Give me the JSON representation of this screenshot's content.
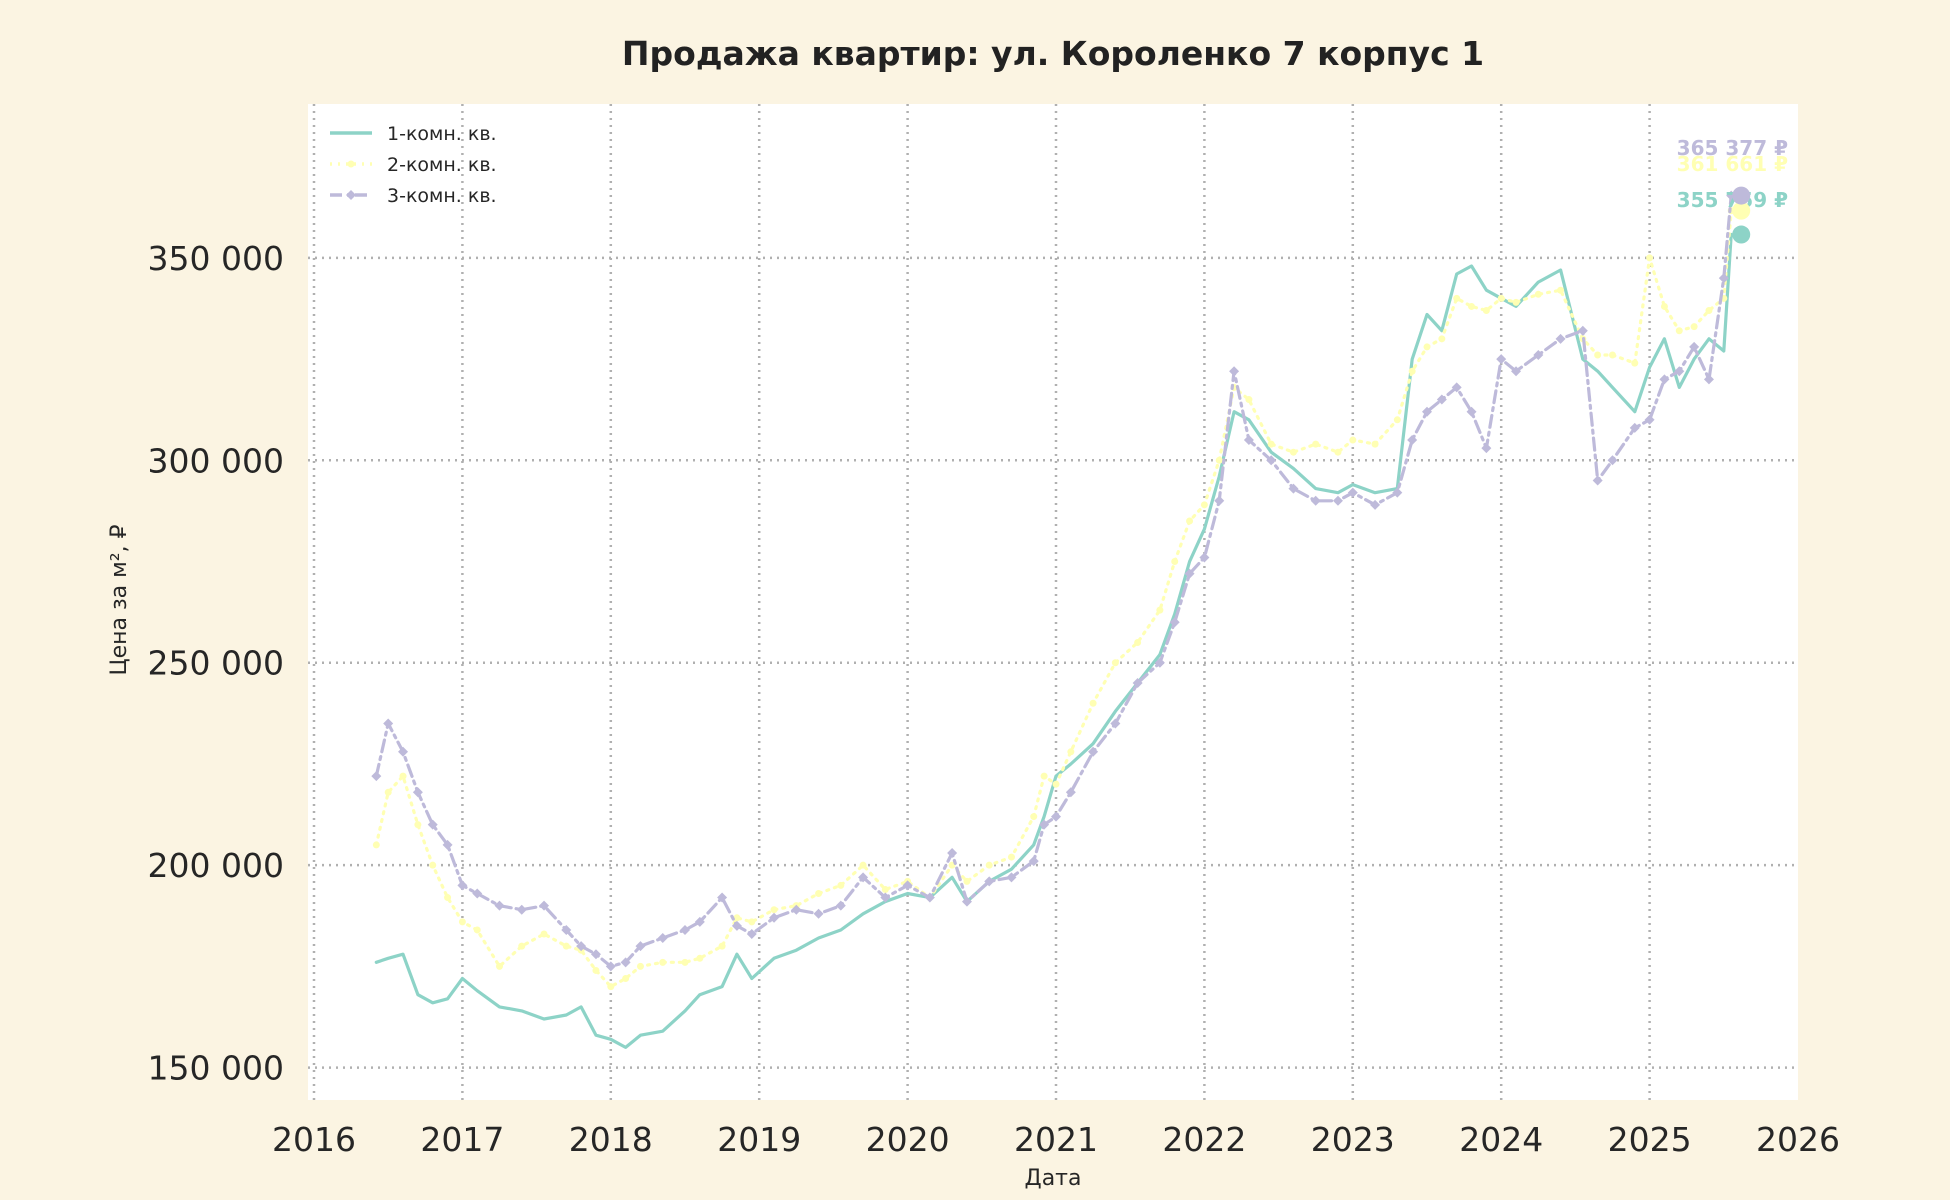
{
  "chart_data": {
    "type": "line",
    "title": "Продажа квартир: ул. Короленко 7 корпус 1",
    "xlabel": "Дата",
    "ylabel": "Цена за м², ₽",
    "xlim": [
      2016.0,
      2026.0
    ],
    "ylim": [
      142000,
      388000
    ],
    "grid": true,
    "legend_position": "top-left",
    "x_ticks": [
      "2016",
      "2017",
      "2018",
      "2019",
      "2020",
      "2021",
      "2022",
      "2023",
      "2024",
      "2025",
      "2026"
    ],
    "y_ticks": [
      "150 000",
      "200 000",
      "250 000",
      "300 000",
      "350 000"
    ],
    "y_tick_values": [
      150000,
      200000,
      250000,
      300000,
      350000
    ],
    "series": [
      {
        "name": "1-комн. кв.",
        "color": "#8dd3c7",
        "style": "solid",
        "marker": "none",
        "end_label": "355 759 ₽",
        "end_value": 355759,
        "x": [
          2016.42,
          2016.5,
          2016.6,
          2016.7,
          2016.8,
          2016.9,
          2017.0,
          2017.1,
          2017.25,
          2017.4,
          2017.55,
          2017.7,
          2017.8,
          2017.9,
          2018.0,
          2018.1,
          2018.2,
          2018.35,
          2018.5,
          2018.6,
          2018.75,
          2018.85,
          2018.95,
          2019.1,
          2019.25,
          2019.4,
          2019.55,
          2019.7,
          2019.85,
          2020.0,
          2020.15,
          2020.3,
          2020.4,
          2020.55,
          2020.7,
          2020.85,
          2020.92,
          2021.0,
          2021.1,
          2021.25,
          2021.4,
          2021.55,
          2021.7,
          2021.8,
          2021.9,
          2022.0,
          2022.1,
          2022.2,
          2022.3,
          2022.45,
          2022.6,
          2022.75,
          2022.9,
          2023.0,
          2023.15,
          2023.3,
          2023.4,
          2023.5,
          2023.6,
          2023.7,
          2023.8,
          2023.9,
          2024.0,
          2024.1,
          2024.25,
          2024.4,
          2024.55,
          2024.65,
          2024.75,
          2024.9,
          2025.0,
          2025.1,
          2025.2,
          2025.3,
          2025.4,
          2025.5,
          2025.55
        ],
        "y": [
          176000,
          177000,
          178000,
          168000,
          166000,
          167000,
          172000,
          169000,
          165000,
          164000,
          162000,
          163000,
          165000,
          158000,
          157000,
          155000,
          158000,
          159000,
          164000,
          168000,
          170000,
          178000,
          172000,
          177000,
          179000,
          182000,
          184000,
          188000,
          191000,
          193000,
          192000,
          197000,
          191000,
          196000,
          199000,
          205000,
          212000,
          222000,
          225000,
          230000,
          238000,
          245000,
          252000,
          262000,
          275000,
          283000,
          296000,
          312000,
          310000,
          302000,
          298000,
          293000,
          292000,
          294000,
          292000,
          293000,
          325000,
          336000,
          332000,
          346000,
          348000,
          342000,
          340000,
          338000,
          344000,
          347000,
          325000,
          322000,
          318000,
          312000,
          323000,
          330000,
          318000,
          325000,
          330000,
          327000,
          355759
        ]
      },
      {
        "name": "2-комн. кв.",
        "color": "#ffffb3",
        "style": "dotted",
        "marker": "dot",
        "end_label": "361 661 ₽",
        "end_value": 361661,
        "x": [
          2016.42,
          2016.5,
          2016.6,
          2016.7,
          2016.8,
          2016.9,
          2017.0,
          2017.1,
          2017.25,
          2017.4,
          2017.55,
          2017.7,
          2017.8,
          2017.9,
          2018.0,
          2018.1,
          2018.2,
          2018.35,
          2018.5,
          2018.6,
          2018.75,
          2018.85,
          2018.95,
          2019.1,
          2019.25,
          2019.4,
          2019.55,
          2019.7,
          2019.85,
          2020.0,
          2020.15,
          2020.3,
          2020.4,
          2020.55,
          2020.7,
          2020.85,
          2020.92,
          2021.0,
          2021.1,
          2021.25,
          2021.4,
          2021.55,
          2021.7,
          2021.8,
          2021.9,
          2022.0,
          2022.1,
          2022.2,
          2022.3,
          2022.45,
          2022.6,
          2022.75,
          2022.9,
          2023.0,
          2023.15,
          2023.3,
          2023.4,
          2023.5,
          2023.6,
          2023.7,
          2023.8,
          2023.9,
          2024.0,
          2024.1,
          2024.25,
          2024.4,
          2024.55,
          2024.65,
          2024.75,
          2024.9,
          2025.0,
          2025.1,
          2025.2,
          2025.3,
          2025.4,
          2025.5,
          2025.55
        ],
        "y": [
          205000,
          218000,
          222000,
          210000,
          200000,
          192000,
          186000,
          184000,
          175000,
          180000,
          183000,
          180000,
          179000,
          174000,
          170000,
          172000,
          175000,
          176000,
          176000,
          177000,
          180000,
          187000,
          186000,
          189000,
          190000,
          193000,
          195000,
          200000,
          194000,
          196000,
          192000,
          200000,
          196000,
          200000,
          202000,
          212000,
          222000,
          220000,
          228000,
          240000,
          250000,
          255000,
          263000,
          275000,
          285000,
          289000,
          300000,
          318000,
          315000,
          304000,
          302000,
          304000,
          302000,
          305000,
          304000,
          310000,
          322000,
          328000,
          330000,
          340000,
          338000,
          337000,
          340000,
          339000,
          341000,
          342000,
          330000,
          326000,
          326000,
          324000,
          350000,
          338000,
          332000,
          333000,
          337000,
          340000,
          361661
        ]
      },
      {
        "name": "3-комн. кв.",
        "color": "#bebada",
        "style": "dashdot",
        "marker": "diamond",
        "end_label": "365 377 ₽",
        "end_value": 365377,
        "x": [
          2016.42,
          2016.5,
          2016.6,
          2016.7,
          2016.8,
          2016.9,
          2017.0,
          2017.1,
          2017.25,
          2017.4,
          2017.55,
          2017.7,
          2017.8,
          2017.9,
          2018.0,
          2018.1,
          2018.2,
          2018.35,
          2018.5,
          2018.6,
          2018.75,
          2018.85,
          2018.95,
          2019.1,
          2019.25,
          2019.4,
          2019.55,
          2019.7,
          2019.85,
          2020.0,
          2020.15,
          2020.3,
          2020.4,
          2020.55,
          2020.7,
          2020.85,
          2020.92,
          2021.0,
          2021.1,
          2021.25,
          2021.4,
          2021.55,
          2021.7,
          2021.8,
          2021.9,
          2022.0,
          2022.1,
          2022.2,
          2022.3,
          2022.45,
          2022.6,
          2022.75,
          2022.9,
          2023.0,
          2023.15,
          2023.3,
          2023.4,
          2023.5,
          2023.6,
          2023.7,
          2023.8,
          2023.9,
          2024.0,
          2024.1,
          2024.25,
          2024.4,
          2024.55,
          2024.65,
          2024.75,
          2024.9,
          2025.0,
          2025.1,
          2025.2,
          2025.3,
          2025.4,
          2025.5,
          2025.55
        ],
        "y": [
          222000,
          235000,
          228000,
          218000,
          210000,
          205000,
          195000,
          193000,
          190000,
          189000,
          190000,
          184000,
          180000,
          178000,
          175000,
          176000,
          180000,
          182000,
          184000,
          186000,
          192000,
          185000,
          183000,
          187000,
          189000,
          188000,
          190000,
          197000,
          192000,
          195000,
          192000,
          203000,
          191000,
          196000,
          197000,
          201000,
          210000,
          212000,
          218000,
          228000,
          235000,
          245000,
          250000,
          260000,
          272000,
          276000,
          290000,
          322000,
          305000,
          300000,
          293000,
          290000,
          290000,
          292000,
          289000,
          292000,
          305000,
          312000,
          315000,
          318000,
          312000,
          303000,
          325000,
          322000,
          326000,
          330000,
          332000,
          295000,
          300000,
          308000,
          310000,
          320000,
          322000,
          328000,
          320000,
          345000,
          365377
        ]
      }
    ]
  }
}
